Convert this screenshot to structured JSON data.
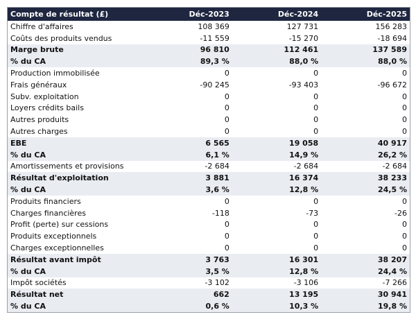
{
  "table": {
    "header": [
      "Compte de résultat (£)",
      "Déc-2023",
      "Déc-2024",
      "Déc-2025"
    ],
    "rows": [
      [
        "Chiffre d'affaires",
        "108 369",
        "127 731",
        "156 283"
      ],
      [
        "Coûts des produits vendus",
        "-11 559",
        "-15 270",
        "-18 694"
      ],
      [
        "Marge brute",
        "96 810",
        "112 461",
        "137 589"
      ],
      [
        "% du CA",
        "89,3 %",
        "88,0 %",
        "88,0 %"
      ],
      [
        "Production immobilisée",
        "0",
        "0",
        "0"
      ],
      [
        "Frais généraux",
        "-90 245",
        "-93 403",
        "-96 672"
      ],
      [
        "Subv. exploitation",
        "0",
        "0",
        "0"
      ],
      [
        "Loyers crédits bails",
        "0",
        "0",
        "0"
      ],
      [
        "Autres produits",
        "0",
        "0",
        "0"
      ],
      [
        "Autres charges",
        "0",
        "0",
        "0"
      ],
      [
        "EBE",
        "6 565",
        "19 058",
        "40 917"
      ],
      [
        "% du CA",
        "6,1 %",
        "14,9 %",
        "26,2 %"
      ],
      [
        "Amortissements et provisions",
        "-2 684",
        "-2 684",
        "-2 684"
      ],
      [
        "Résultat d'exploitation",
        "3 881",
        "16 374",
        "38 233"
      ],
      [
        "% du CA",
        "3,6 %",
        "12,8 %",
        "24,5 %"
      ],
      [
        "Produits financiers",
        "0",
        "0",
        "0"
      ],
      [
        "Charges financières",
        "-118",
        "-73",
        "-26"
      ],
      [
        "Profit (perte) sur cessions",
        "0",
        "0",
        "0"
      ],
      [
        "Produits exceptionnels",
        "0",
        "0",
        "0"
      ],
      [
        "Charges exceptionnelles",
        "0",
        "0",
        "0"
      ],
      [
        "Résultat avant impôt",
        "3 763",
        "16 301",
        "38 207"
      ],
      [
        "% du CA",
        "3,5 %",
        "12,8 %",
        "24,4 %"
      ],
      [
        "Impôt sociétés",
        "-3 102",
        "-3 106",
        "-7 266"
      ],
      [
        "Résultat net",
        "662",
        "13 195",
        "30 941"
      ],
      [
        "% du CA",
        "0,6 %",
        "10,3 %",
        "19,8 %"
      ]
    ]
  }
}
